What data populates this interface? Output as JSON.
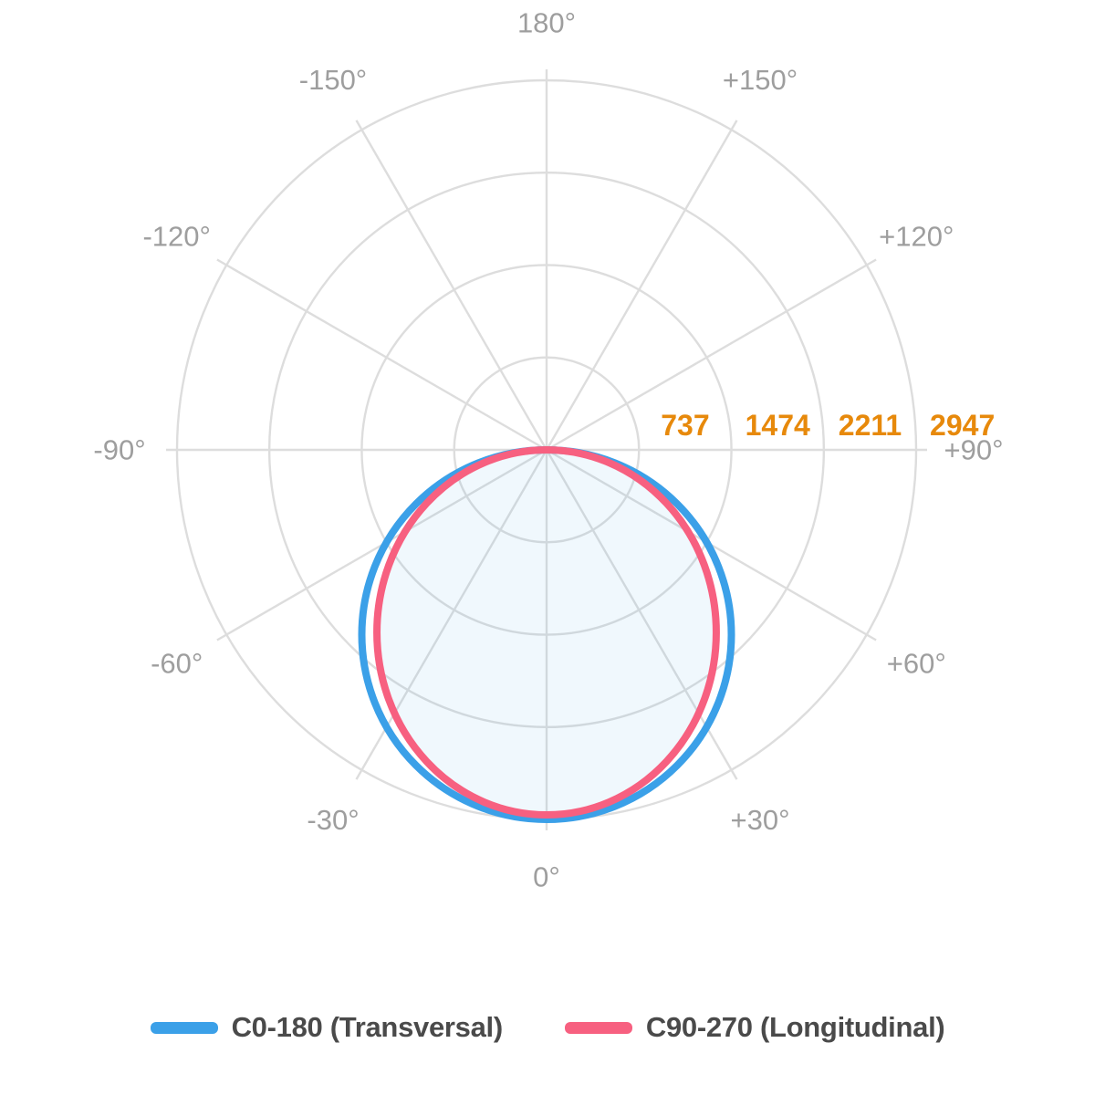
{
  "chart_data": {
    "type": "line",
    "variant": "polar photometric curve (luminous intensity distribution)",
    "title": "",
    "orientation": "0° at bottom (nadir), 180° at top, -90° left, +90° right",
    "angle_axis": {
      "step_deg": 30,
      "labels": [
        {
          "deg": 0,
          "label": "0°"
        },
        {
          "deg": 30,
          "label": "+30°"
        },
        {
          "deg": 60,
          "label": "+60°"
        },
        {
          "deg": 90,
          "label": "+90°"
        },
        {
          "deg": 120,
          "label": "+120°"
        },
        {
          "deg": 150,
          "label": "+150°"
        },
        {
          "deg": 180,
          "label": "180°"
        },
        {
          "deg": -150,
          "label": "-150°"
        },
        {
          "deg": -120,
          "label": "-120°"
        },
        {
          "deg": -90,
          "label": "-90°"
        },
        {
          "deg": -60,
          "label": "-60°"
        },
        {
          "deg": -30,
          "label": "-30°"
        }
      ]
    },
    "radius_axis": {
      "ticks": [
        737,
        1474,
        2211,
        2947
      ],
      "max": 2947,
      "label_color": "#e7890b"
    },
    "gamma_deg": [
      -90,
      -75,
      -60,
      -45,
      -30,
      -15,
      0,
      15,
      30,
      45,
      60,
      75,
      90
    ],
    "series": [
      {
        "name": "C0-180 (Transversal)",
        "color": "#3ba0e8",
        "values": [
          0,
          763,
          1474,
          2084,
          2552,
          2847,
          2947,
          2847,
          2552,
          2084,
          1474,
          763,
          0
        ],
        "shape": {
          "kind": "circle",
          "diameter_units": 2947
        }
      },
      {
        "name": "C90-270 (Longitudinal)",
        "color": "#f76080",
        "fill_color": "rgba(59,160,232,0.08)",
        "values": [
          0,
          657,
          1302,
          1908,
          2426,
          2783,
          2911,
          2783,
          2426,
          1908,
          1302,
          657,
          0
        ],
        "shape": {
          "kind": "ellipse",
          "width_units": 2706,
          "depth_units": 2911
        }
      }
    ],
    "grid": {
      "color": "#dddddd",
      "angle_label_color": "#9e9e9e",
      "grid_on": true
    },
    "legend_position": "bottom"
  },
  "legend": {
    "items": [
      {
        "label": "C0-180 (Transversal)",
        "color": "#3ba0e8"
      },
      {
        "label": "C90-270 (Longitudinal)",
        "color": "#f76080"
      }
    ]
  }
}
